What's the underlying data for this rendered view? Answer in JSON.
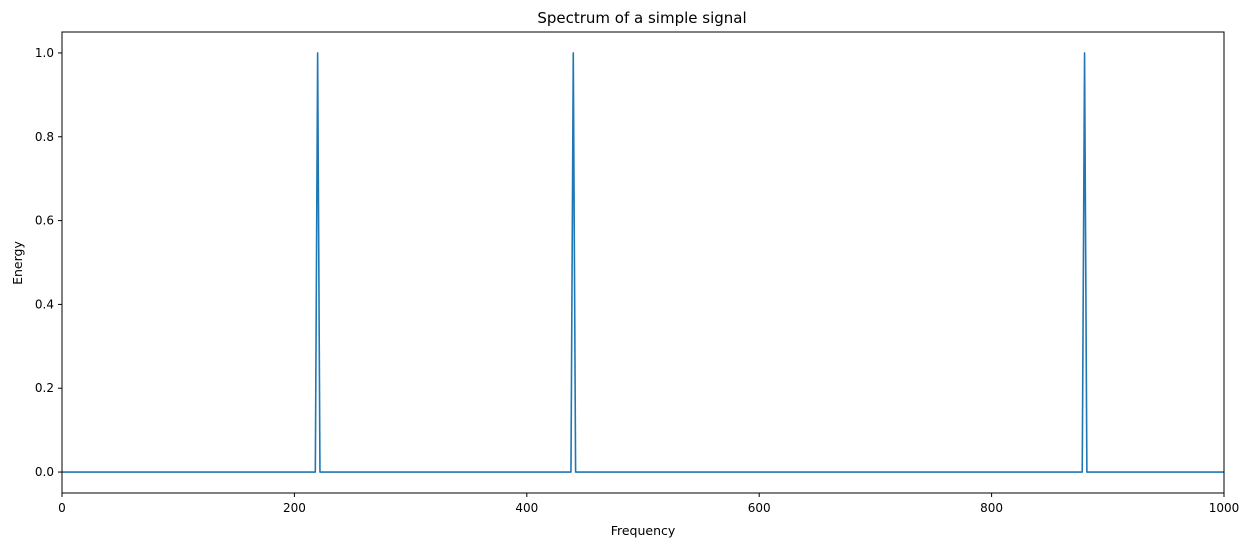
{
  "chart_data": {
    "type": "line",
    "title": "Spectrum of a simple signal",
    "xlabel": "Frequency",
    "ylabel": "Energy",
    "xlim": [
      0,
      1000
    ],
    "ylim": [
      -0.05,
      1.05
    ],
    "xticks": [
      0,
      200,
      400,
      600,
      800,
      1000
    ],
    "xtick_labels": [
      "0",
      "200",
      "400",
      "600",
      "800",
      "1000"
    ],
    "yticks": [
      0.0,
      0.2,
      0.4,
      0.6,
      0.8,
      1.0
    ],
    "ytick_labels": [
      "0.0",
      "0.2",
      "0.4",
      "0.6",
      "0.8",
      "1.0"
    ],
    "grid": false,
    "legend": "none",
    "series": [
      {
        "color": "#1f77b4",
        "x": [
          0,
          217,
          218,
          219,
          220,
          221,
          222,
          223,
          437,
          438,
          439,
          440,
          441,
          442,
          443,
          877,
          878,
          879,
          880,
          881,
          882,
          883,
          1000
        ],
        "y": [
          0,
          0,
          0,
          0.5,
          1.0,
          0.5,
          0,
          0,
          0,
          0,
          0.5,
          1.0,
          0.5,
          0,
          0,
          0,
          0,
          0.5,
          1.0,
          0.5,
          0,
          0,
          0
        ]
      }
    ]
  }
}
